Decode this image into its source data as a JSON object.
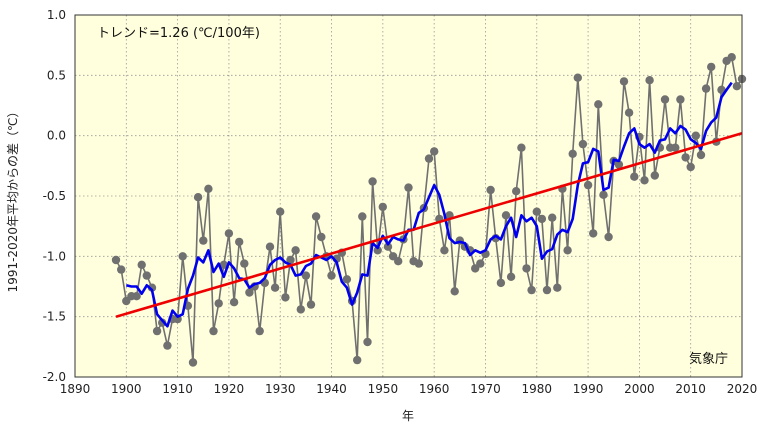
{
  "chart_data": {
    "type": "line",
    "title": "",
    "xlabel": "年",
    "ylabel": "1991-2020年平均からの差（℃）",
    "xlim": [
      1890,
      2020
    ],
    "ylim": [
      -2.0,
      1.0
    ],
    "x_ticks": [
      1890,
      1900,
      1910,
      1920,
      1930,
      1940,
      1950,
      1960,
      1970,
      1980,
      1990,
      2000,
      2010,
      2020
    ],
    "y_ticks": [
      "-2.0",
      "-1.5",
      "-1.0",
      "-0.5",
      "0.0",
      "0.5",
      "1.0"
    ],
    "trend_text": "トレンド=1.26 (℃/100年)",
    "credit": "気象庁",
    "background_color": "#ffffdd",
    "grid": true,
    "series": [
      {
        "role": "annual",
        "color": "#707070",
        "x": [
          1898,
          1899,
          1900,
          1901,
          1902,
          1903,
          1904,
          1905,
          1906,
          1907,
          1908,
          1909,
          1910,
          1911,
          1912,
          1913,
          1914,
          1915,
          1916,
          1917,
          1918,
          1919,
          1920,
          1921,
          1922,
          1923,
          1924,
          1925,
          1926,
          1927,
          1928,
          1929,
          1930,
          1931,
          1932,
          1933,
          1934,
          1935,
          1936,
          1937,
          1938,
          1939,
          1940,
          1941,
          1942,
          1943,
          1944,
          1945,
          1946,
          1947,
          1948,
          1949,
          1950,
          1951,
          1952,
          1953,
          1954,
          1955,
          1956,
          1957,
          1958,
          1959,
          1960,
          1961,
          1962,
          1963,
          1964,
          1965,
          1966,
          1967,
          1968,
          1969,
          1970,
          1971,
          1972,
          1973,
          1974,
          1975,
          1976,
          1977,
          1978,
          1979,
          1980,
          1981,
          1982,
          1983,
          1984,
          1985,
          1986,
          1987,
          1988,
          1989,
          1990,
          1991,
          1992,
          1993,
          1994,
          1995,
          1996,
          1997,
          1998,
          1999,
          2000,
          2001,
          2002,
          2003,
          2004,
          2005,
          2006,
          2007,
          2008,
          2009,
          2010,
          2011,
          2012,
          2013,
          2014,
          2015,
          2016,
          2017,
          2018,
          2019,
          2020
        ],
        "values": [
          -1.03,
          -1.11,
          -1.37,
          -1.33,
          -1.33,
          -1.07,
          -1.16,
          -1.26,
          -1.62,
          -1.55,
          -1.74,
          -1.52,
          -1.52,
          -1.0,
          -1.41,
          -1.88,
          -0.51,
          -0.87,
          -0.44,
          -1.62,
          -1.39,
          -1.07,
          -0.81,
          -1.38,
          -0.88,
          -1.06,
          -1.3,
          -1.25,
          -1.62,
          -1.22,
          -0.92,
          -1.26,
          -0.63,
          -1.34,
          -1.03,
          -0.95,
          -1.44,
          -1.16,
          -1.4,
          -0.67,
          -0.84,
          -1.0,
          -1.16,
          -1.02,
          -0.97,
          -1.19,
          -1.37,
          -1.86,
          -0.67,
          -1.71,
          -0.38,
          -0.95,
          -0.59,
          -0.92,
          -1.0,
          -1.04,
          -0.86,
          -0.43,
          -1.04,
          -1.06,
          -0.6,
          -0.19,
          -0.13,
          -0.69,
          -0.95,
          -0.66,
          -1.29,
          -0.87,
          -0.92,
          -0.95,
          -1.1,
          -1.06,
          -0.98,
          -0.45,
          -0.85,
          -1.22,
          -0.66,
          -1.17,
          -0.46,
          -0.1,
          -1.1,
          -1.28,
          -0.63,
          -0.69,
          -1.28,
          -0.68,
          -1.26,
          -0.44,
          -0.95,
          -0.15,
          0.48,
          -0.07,
          -0.41,
          -0.81,
          0.26,
          -0.49,
          -0.84,
          -0.21,
          -0.24,
          0.45,
          0.19,
          -0.34,
          -0.01,
          -0.37,
          0.46,
          -0.33,
          -0.1,
          0.3,
          -0.1,
          -0.1,
          0.3,
          -0.18,
          -0.26,
          0.0,
          -0.16,
          0.39,
          0.57,
          -0.05,
          0.38,
          0.62,
          0.65,
          0.41,
          0.47
        ]
      },
      {
        "role": "moving_average",
        "color": "#0000ee",
        "x": [
          1900,
          1901,
          1902,
          1903,
          1904,
          1905,
          1906,
          1907,
          1908,
          1909,
          1910,
          1911,
          1912,
          1913,
          1914,
          1915,
          1916,
          1917,
          1918,
          1919,
          1920,
          1921,
          1922,
          1923,
          1924,
          1925,
          1926,
          1927,
          1928,
          1929,
          1930,
          1931,
          1932,
          1933,
          1934,
          1935,
          1936,
          1937,
          1938,
          1939,
          1940,
          1941,
          1942,
          1943,
          1944,
          1945,
          1946,
          1947,
          1948,
          1949,
          1950,
          1951,
          1952,
          1953,
          1954,
          1955,
          1956,
          1957,
          1958,
          1959,
          1960,
          1961,
          1962,
          1963,
          1964,
          1965,
          1966,
          1967,
          1968,
          1969,
          1970,
          1971,
          1972,
          1973,
          1974,
          1975,
          1976,
          1977,
          1978,
          1979,
          1980,
          1981,
          1982,
          1983,
          1984,
          1985,
          1986,
          1987,
          1988,
          1989,
          1990,
          1991,
          1992,
          1993,
          1994,
          1995,
          1996,
          1997,
          1998,
          1999,
          2000,
          2001,
          2002,
          2003,
          2004,
          2005,
          2006,
          2007,
          2008,
          2009,
          2010,
          2011,
          2012,
          2013,
          2014,
          2015,
          2016,
          2017,
          2018
        ],
        "values": [
          -1.24,
          -1.25,
          -1.25,
          -1.31,
          -1.24,
          -1.28,
          -1.48,
          -1.53,
          -1.58,
          -1.45,
          -1.5,
          -1.48,
          -1.27,
          -1.16,
          -1.01,
          -1.05,
          -0.95,
          -1.13,
          -1.06,
          -1.17,
          -1.05,
          -1.1,
          -1.18,
          -1.19,
          -1.26,
          -1.23,
          -1.22,
          -1.18,
          -1.07,
          -1.03,
          -1.01,
          -1.05,
          -1.07,
          -1.16,
          -1.15,
          -1.08,
          -1.06,
          -0.99,
          -1.01,
          -1.03,
          -1.0,
          -1.05,
          -1.21,
          -1.26,
          -1.4,
          -1.3,
          -1.15,
          -1.16,
          -0.89,
          -0.93,
          -0.83,
          -0.9,
          -0.84,
          -0.86,
          -0.87,
          -0.78,
          -0.78,
          -0.64,
          -0.61,
          -0.51,
          -0.41,
          -0.49,
          -0.65,
          -0.85,
          -0.89,
          -0.88,
          -0.89,
          -0.99,
          -0.95,
          -0.97,
          -0.95,
          -0.86,
          -0.83,
          -0.86,
          -0.75,
          -0.68,
          -0.84,
          -0.66,
          -0.71,
          -0.68,
          -0.75,
          -1.02,
          -0.96,
          -0.94,
          -0.82,
          -0.78,
          -0.8,
          -0.69,
          -0.41,
          -0.23,
          -0.22,
          -0.11,
          -0.13,
          -0.45,
          -0.43,
          -0.2,
          -0.21,
          -0.09,
          0.02,
          0.06,
          -0.07,
          -0.1,
          -0.07,
          -0.14,
          -0.04,
          -0.03,
          0.06,
          0.02,
          0.08,
          0.05,
          -0.03,
          -0.06,
          -0.11,
          0.04,
          0.11,
          0.15,
          0.32,
          0.38,
          0.44
        ]
      },
      {
        "role": "trend",
        "color": "#ee0000",
        "x": [
          1898,
          2020
        ],
        "values": [
          -1.5,
          0.02
        ]
      }
    ]
  }
}
